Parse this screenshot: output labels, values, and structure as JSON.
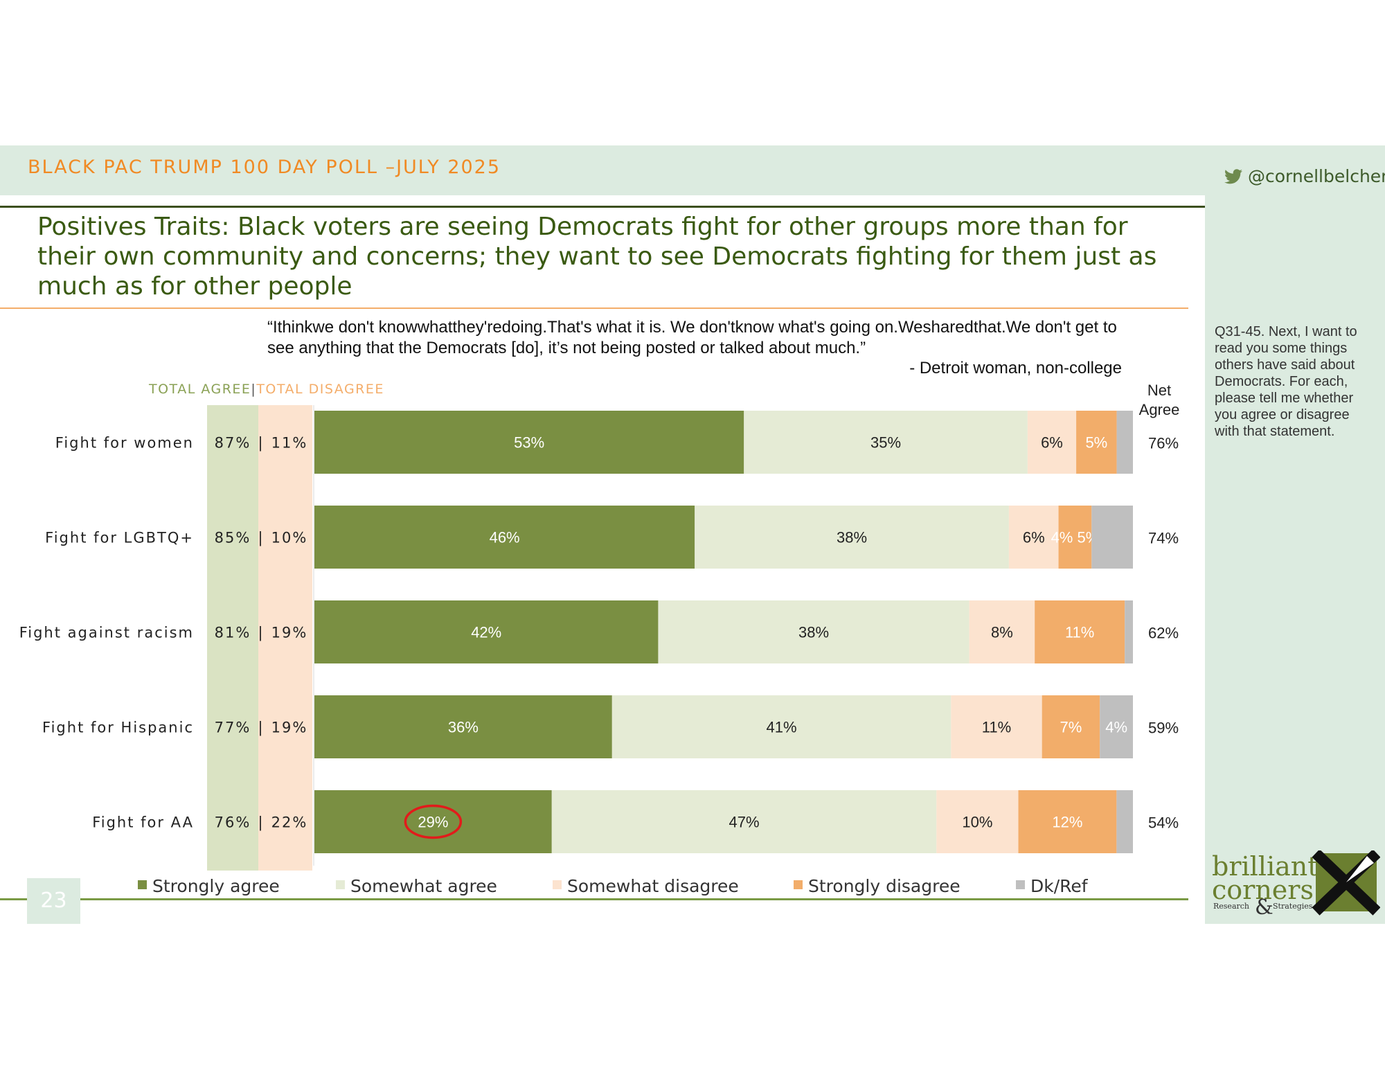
{
  "header": {
    "title": "BLACK PAC TRUMP 100 DAY POLL –JULY 2025",
    "twitter": "@cornellbelcher"
  },
  "slide_title": "Positives Traits: Black voters are seeing Democrats fight for other groups more than for their own community and concerns; they want to see Democrats fighting for them just as much as for other people",
  "quote": {
    "text": "“Ithinkwe don't knowwhatthey'redoing.That's what it is. We don'tknow what's going on.Wesharedthat.We don't get to see anything that the Democrats [do], it’s not being posted or talked about much.”",
    "attribution": "- Detroit woman, non-college"
  },
  "side_note": "Q31-45. Next, I want to read you some things others have said about Democrats. For each, please tell me whether you agree or disagree with that statement.",
  "column_headers": {
    "total_agree": "TOTAL AGREE",
    "separator": "|",
    "total_disagree": "TOTAL DISAGREE",
    "net_agree": "Net Agree"
  },
  "page_number": "23",
  "logo": {
    "line1": "brilliant",
    "line2": "corners",
    "ampersand": "&",
    "left_text": "Research",
    "right_text": "Strategies"
  },
  "colors": {
    "strongly_agree": "#7a8f42",
    "somewhat_agree": "#e5ebd5",
    "somewhat_disagree": "#fce3cf",
    "strongly_disagree": "#f2ad6a",
    "dk_ref": "#bfbfbf",
    "highlight_circle": "#e21b1b"
  },
  "chart_data": {
    "type": "bar",
    "orientation": "horizontal",
    "stacked": true,
    "categories": [
      "Fight for women",
      "Fight for LGBTQ+",
      "Fight against racism",
      "Fight for Hispanic",
      "Fight for AA"
    ],
    "series": [
      {
        "name": "Strongly agree",
        "values": [
          53,
          46,
          42,
          36,
          29
        ],
        "labels": [
          "53%",
          "46%",
          "42%",
          "36%",
          "29%"
        ]
      },
      {
        "name": "Somewhat agree",
        "values": [
          35,
          38,
          38,
          41,
          47
        ],
        "labels": [
          "35%",
          "38%",
          "38%",
          "41%",
          "47%"
        ]
      },
      {
        "name": "Somewhat disagree",
        "values": [
          6,
          6,
          8,
          11,
          10
        ],
        "labels": [
          "6%",
          "6%",
          "8%",
          "11%",
          "10%"
        ]
      },
      {
        "name": "Strongly disagree",
        "values": [
          5,
          4,
          11,
          7,
          12
        ],
        "labels": [
          "5%",
          "4% 5%",
          "11%",
          "7%",
          "12%"
        ]
      },
      {
        "name": "Dk/Ref",
        "values": [
          2,
          5,
          1,
          4,
          2
        ],
        "labels": [
          "",
          "",
          "",
          "4%",
          ""
        ]
      }
    ],
    "total_agree": [
      "87%",
      "85%",
      "81%",
      "77%",
      "76%"
    ],
    "total_disagree": [
      "11%",
      "10%",
      "19%",
      "19%",
      "22%"
    ],
    "net_agree": [
      "76%",
      "74%",
      "62%",
      "59%",
      "54%"
    ],
    "highlight": {
      "category": "Fight for AA",
      "series": "Strongly agree"
    },
    "legend_position": "bottom"
  }
}
